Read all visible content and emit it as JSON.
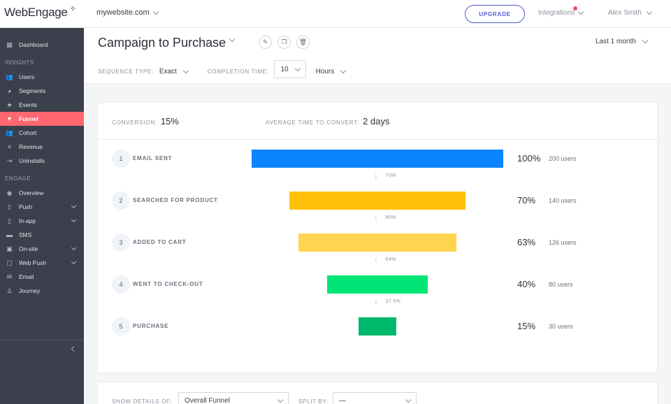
{
  "app": {
    "logo": "WebEngage",
    "logo_mark": "✧"
  },
  "header": {
    "site": "mywebsite.com",
    "upgrade_label": "UPGRADE",
    "integrations_label": "Integrations",
    "user_name": "Alex Smith",
    "notification_color": "#f0505f"
  },
  "sidebar": {
    "dashboard": "Dashboard",
    "insights_title": "INSIGHTS",
    "insights": [
      "Users",
      "Segments",
      "Events",
      "Funnel",
      "Cohort",
      "Revenue",
      "Uninstalls"
    ],
    "engage_title": "ENGAGE",
    "engage": [
      "Overview",
      "Push",
      "In-app",
      "SMS",
      "On-site",
      "Web Push",
      "Email",
      "Journey"
    ],
    "active": "Funnel",
    "active_color": "#ff6771"
  },
  "page": {
    "title": "Campaign to Purchase",
    "date_range": "Last 1 month",
    "sequence_type_label": "SEQUENCE TYPE:",
    "sequence_type_value": "Exact",
    "completion_time_label": "COMPLETION TIME:",
    "completion_time_value": "10",
    "completion_time_unit": "Hours"
  },
  "funnel": {
    "conversion_label": "CONVERSION:",
    "conversion_value": "15%",
    "avg_time_label": "AVERAGE TIME TO CONVERT:",
    "avg_time_value": "2 days",
    "steps": [
      {
        "num": "1",
        "label": "EMAIL SENT",
        "pct": "100%",
        "users": "200 users",
        "value": 100,
        "color": "#0a84ff"
      },
      {
        "num": "2",
        "label": "SEARCHED FOR PRODUCT",
        "pct": "70%",
        "users": "140 users",
        "value": 70,
        "color": "#ffc107"
      },
      {
        "num": "3",
        "label": "ADDED TO CART",
        "pct": "63%",
        "users": "126 users",
        "value": 63,
        "color": "#ffd54f"
      },
      {
        "num": "4",
        "label": "WENT TO CHECK-OUT",
        "pct": "40%",
        "users": "80 users",
        "value": 40,
        "color": "#00e676"
      },
      {
        "num": "5",
        "label": "PURCHASE",
        "pct": "15%",
        "users": "30 users",
        "value": 15,
        "color": "#00b86b"
      }
    ],
    "drops": [
      "70%",
      "90%",
      "64%",
      "37.5%"
    ]
  },
  "details": {
    "show_details_label": "SHOW DETAILS OF:",
    "show_details_value": "Overall Funnel",
    "split_by_label": "SPLIT BY:",
    "split_by_value": "—"
  }
}
